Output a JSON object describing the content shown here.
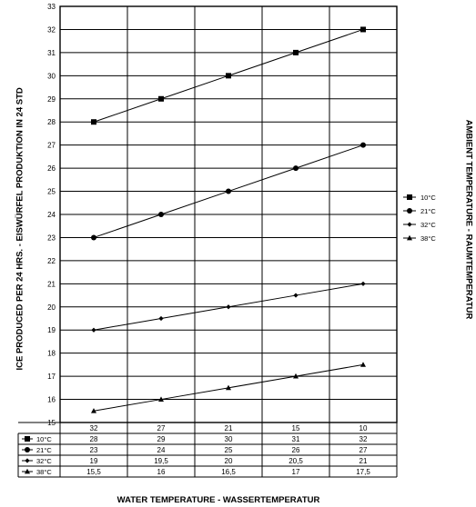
{
  "chart_data": {
    "type": "line",
    "ylabel": "ICE PRODUCED PER 24 HRS. - EISWÜRFEL  PRODUKTION IN 24 STD",
    "xlabel": "WATER TEMPERATURE - WASSERTEMPERATUR",
    "legend_title": "AMBIENT TEMPERATURE - RAUMTEMPERATUR",
    "legend_position": "right",
    "grid": true,
    "ylim": [
      15,
      33
    ],
    "yticks": [
      "15",
      "16",
      "17",
      "18",
      "19",
      "20",
      "21",
      "22",
      "23",
      "24",
      "25",
      "26",
      "27",
      "28",
      "29",
      "30",
      "31",
      "32",
      "33"
    ],
    "categories": [
      "32",
      "27",
      "21",
      "15",
      "10"
    ],
    "series": [
      {
        "name": "10°C",
        "marker": "square",
        "values": [
          28,
          29,
          30,
          31,
          32
        ],
        "labels": [
          "28",
          "29",
          "30",
          "31",
          "32"
        ]
      },
      {
        "name": "21°C",
        "marker": "circle",
        "values": [
          23,
          24,
          25,
          26,
          27
        ],
        "labels": [
          "23",
          "24",
          "25",
          "26",
          "27"
        ]
      },
      {
        "name": "32°C",
        "marker": "diamond",
        "values": [
          19,
          19.5,
          20,
          20.5,
          21
        ],
        "labels": [
          "19",
          "19,5",
          "20",
          "20,5",
          "21"
        ]
      },
      {
        "name": "38°C",
        "marker": "triangle",
        "values": [
          15.5,
          16,
          16.5,
          17,
          17.5
        ],
        "labels": [
          "15,5",
          "16",
          "16,5",
          "17",
          "17,5"
        ]
      }
    ]
  }
}
